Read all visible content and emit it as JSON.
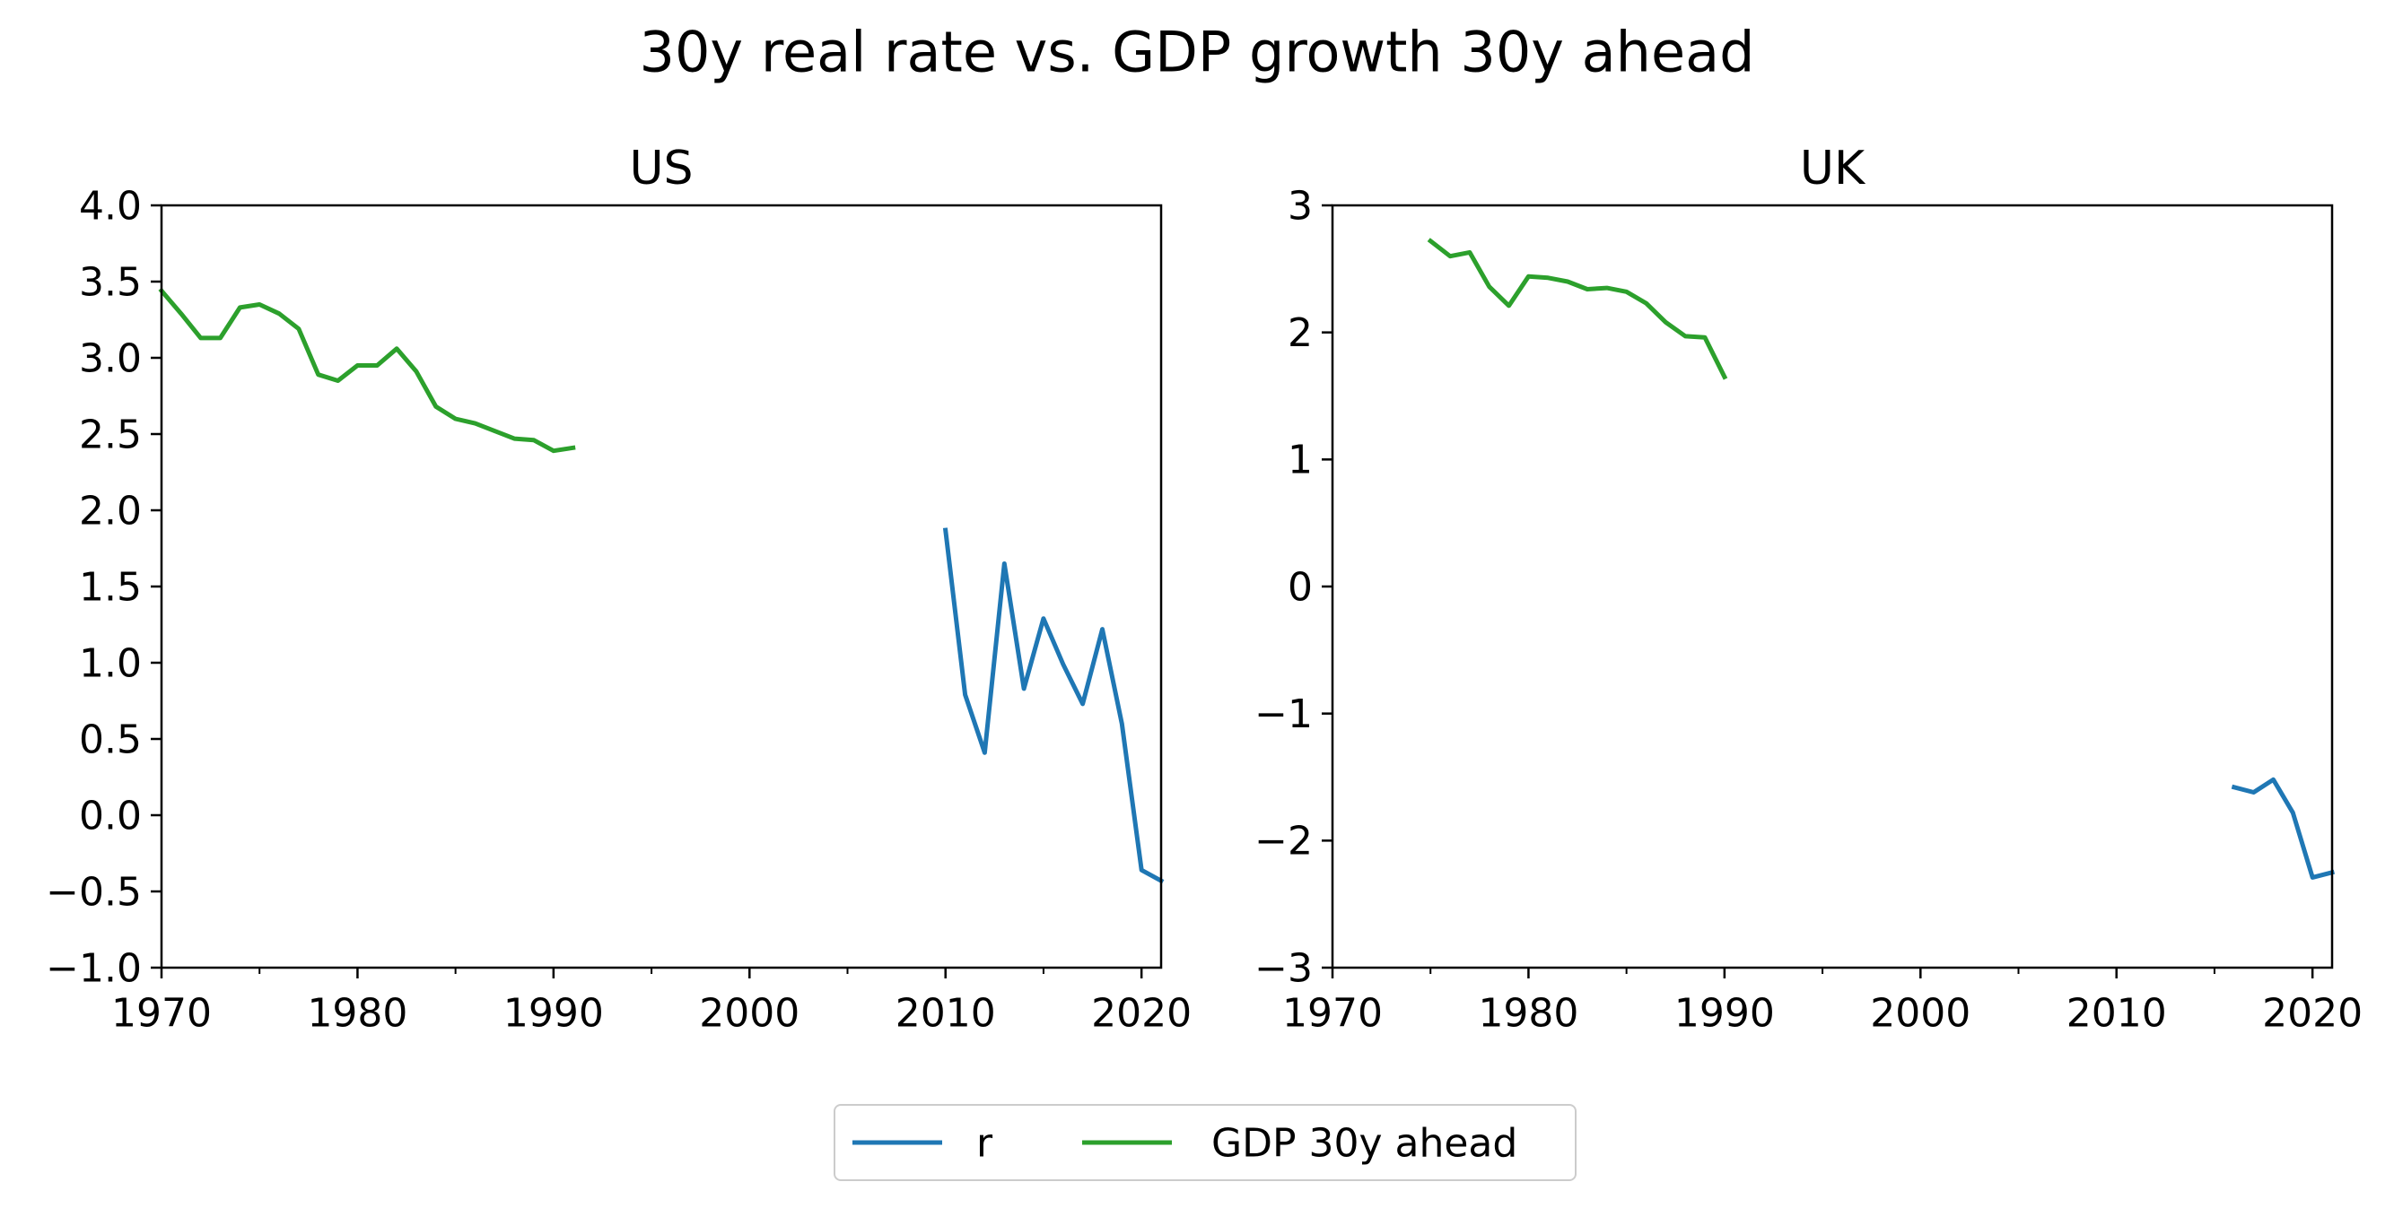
{
  "title": "30y real rate vs. GDP growth 30y ahead",
  "colors": {
    "r": "#1f77b4",
    "gdp": "#2ca02c"
  },
  "legend": {
    "placement": "bottom-center",
    "entries": [
      {
        "key": "r",
        "label": "r",
        "color": "#1f77b4"
      },
      {
        "key": "gdp",
        "label": "GDP 30y ahead",
        "color": "#2ca02c"
      }
    ]
  },
  "chart_data": [
    {
      "type": "line",
      "title": "US",
      "xlabel": "",
      "ylabel": "",
      "xlim": [
        1970,
        2021
      ],
      "ylim": [
        -1.0,
        4.0
      ],
      "grid": false,
      "xticks": [
        1970,
        1980,
        1990,
        2000,
        2010,
        2020
      ],
      "xtick_labels": [
        "1970",
        "1980",
        "1990",
        "2000",
        "2010",
        "2020"
      ],
      "yticks": [
        -1.0,
        -0.5,
        0.0,
        0.5,
        1.0,
        1.5,
        2.0,
        2.5,
        3.0,
        3.5,
        4.0
      ],
      "ytick_labels": [
        "−1.0",
        "−0.5",
        "0.0",
        "0.5",
        "1.0",
        "1.5",
        "2.0",
        "2.5",
        "3.0",
        "3.5",
        "4.0"
      ],
      "series": [
        {
          "name": "GDP 30y ahead",
          "key": "gdp",
          "x": [
            1970,
            1971,
            1972,
            1973,
            1974,
            1975,
            1976,
            1977,
            1978,
            1979,
            1980,
            1981,
            1982,
            1983,
            1984,
            1985,
            1986,
            1987,
            1988,
            1989,
            1990,
            1991
          ],
          "y": [
            3.44,
            3.29,
            3.13,
            3.13,
            3.33,
            3.35,
            3.29,
            3.19,
            2.89,
            2.85,
            2.95,
            2.95,
            3.06,
            2.91,
            2.68,
            2.6,
            2.57,
            2.52,
            2.47,
            2.46,
            2.39,
            2.41
          ]
        },
        {
          "name": "r",
          "key": "r",
          "x": [
            2010,
            2011,
            2012,
            2013,
            2014,
            2015,
            2016,
            2017,
            2018,
            2019,
            2020,
            2021
          ],
          "y": [
            1.87,
            0.79,
            0.41,
            1.65,
            0.83,
            1.29,
            0.99,
            0.73,
            1.22,
            0.6,
            -0.36,
            -0.43
          ]
        }
      ]
    },
    {
      "type": "line",
      "title": "UK",
      "xlabel": "",
      "ylabel": "",
      "xlim": [
        1970,
        2021
      ],
      "ylim": [
        -3,
        3
      ],
      "grid": false,
      "xticks": [
        1970,
        1980,
        1990,
        2000,
        2010,
        2020
      ],
      "xtick_labels": [
        "1970",
        "1980",
        "1990",
        "2000",
        "2010",
        "2020"
      ],
      "yticks": [
        -3,
        -2,
        -1,
        0,
        1,
        2,
        3
      ],
      "ytick_labels": [
        "−3",
        "−2",
        "−1",
        "0",
        "1",
        "2",
        "3"
      ],
      "series": [
        {
          "name": "GDP 30y ahead",
          "key": "gdp",
          "x": [
            1975,
            1976,
            1977,
            1978,
            1979,
            1980,
            1981,
            1982,
            1983,
            1984,
            1985,
            1986,
            1987,
            1988,
            1989,
            1990
          ],
          "y": [
            2.72,
            2.6,
            2.63,
            2.36,
            2.21,
            2.44,
            2.43,
            2.4,
            2.34,
            2.35,
            2.32,
            2.23,
            2.08,
            1.97,
            1.96,
            1.65
          ]
        },
        {
          "name": "r",
          "key": "r",
          "x": [
            2016,
            2017,
            2018,
            2019,
            2020,
            2021
          ],
          "y": [
            -1.58,
            -1.62,
            -1.52,
            -1.78,
            -2.29,
            -2.25
          ]
        }
      ]
    }
  ]
}
